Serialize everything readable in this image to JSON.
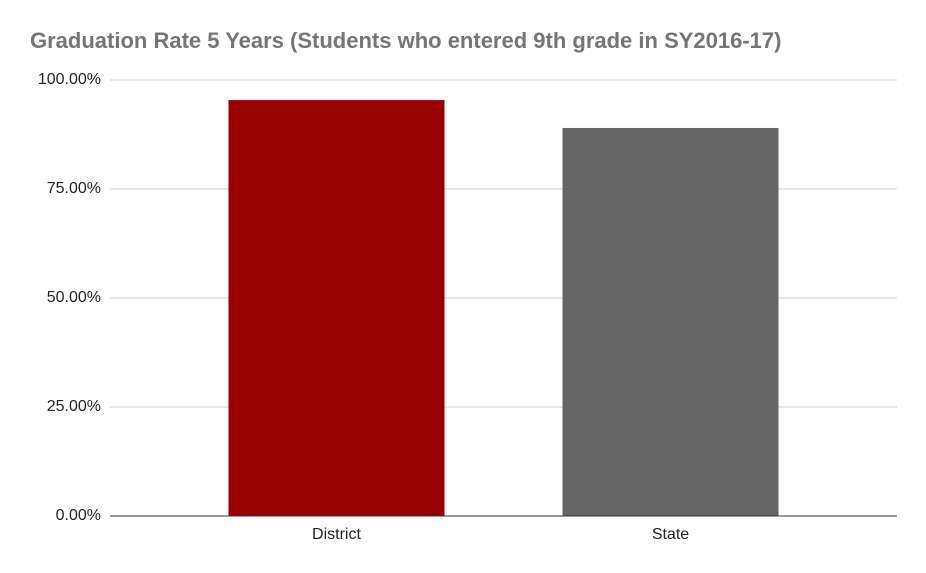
{
  "chart_data": {
    "type": "bar",
    "title": "Graduation Rate 5 Years (Students who entered 9th grade in SY2016-17)",
    "categories": [
      "District",
      "State"
    ],
    "values": [
      95.4,
      89.0
    ],
    "colors": [
      "#990000",
      "#666666"
    ],
    "ylim": [
      0,
      100
    ],
    "yticks": [
      {
        "value": 0,
        "label": "0.00%"
      },
      {
        "value": 25,
        "label": "25.00%"
      },
      {
        "value": 50,
        "label": "50.00%"
      },
      {
        "value": 75,
        "label": "75.00%"
      },
      {
        "value": 100,
        "label": "100.00%"
      }
    ],
    "grid": true
  }
}
